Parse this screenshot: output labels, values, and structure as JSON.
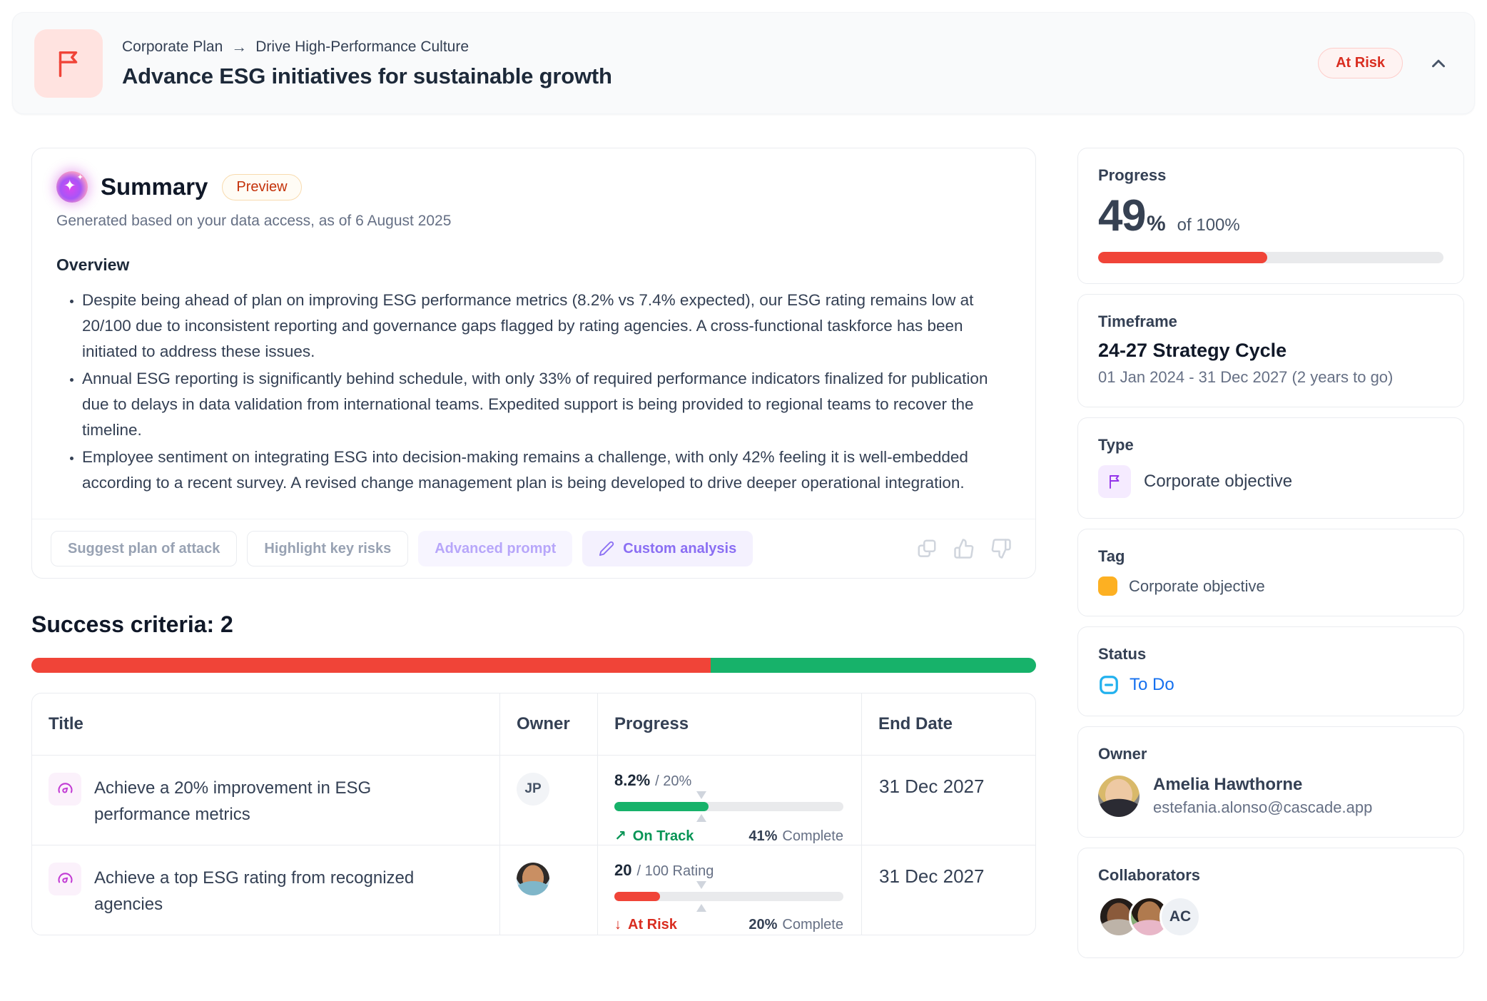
{
  "header": {
    "breadcrumb": {
      "parent": "Corporate Plan",
      "separator": "→",
      "child": "Drive High-Performance Culture"
    },
    "title": "Advance ESG initiatives for sustainable growth",
    "status_badge": "At Risk",
    "icon": "flag-icon"
  },
  "summary": {
    "title": "Summary",
    "badge": "Preview",
    "generated_note": "Generated based on your data access, as of 6 August 2025",
    "section_heading": "Overview",
    "bullets": [
      "Despite being ahead of plan on improving ESG performance metrics (8.2% vs 7.4% expected), our ESG rating remains low at 20/100 due to inconsistent reporting and governance gaps flagged by rating agencies. A cross-functional taskforce has been initiated to address these issues.",
      "Annual ESG reporting is significantly behind schedule, with only 33% of required performance indicators finalized for publication due to delays in data validation from international teams. Expedited support is being provided to regional teams to recover the timeline.",
      "Employee sentiment on integrating ESG into decision-making remains a challenge, with only 42% feeling it is well-embedded according to a recent survey. A revised change management plan is being developed to drive deeper operational integration."
    ],
    "actions": {
      "suggest": "Suggest plan of attack",
      "highlight": "Highlight key risks",
      "advanced": "Advanced prompt",
      "custom": "Custom analysis"
    },
    "feedback_icons": [
      "copy-icon",
      "thumbs-up-icon",
      "thumbs-down-icon"
    ]
  },
  "success_criteria": {
    "heading": "Success criteria: 2",
    "bar": {
      "segments": [
        {
          "color": "#F04438",
          "percent": 67.6
        },
        {
          "color": "#17B26A",
          "percent": 32.4
        }
      ]
    },
    "table": {
      "columns": [
        "Title",
        "Owner",
        "Progress",
        "End Date"
      ],
      "rows": [
        {
          "icon": "gauge-icon",
          "title": "Achieve a 20% improvement in ESG performance metrics",
          "owner_initials": "JP",
          "progress": {
            "current": "8.2%",
            "target": "/ 20%",
            "fill_percent": 41,
            "expected_marker_percent": 38,
            "fill_color": "#17B26A",
            "status_arrow": "↗",
            "status_label": "On Track",
            "complete_value": "41%",
            "complete_word": "Complete"
          },
          "end_date": "31 Dec 2027"
        },
        {
          "icon": "gauge-icon",
          "title": "Achieve a top ESG rating from recognized agencies",
          "owner_avatar": "photo-woman-teal",
          "progress": {
            "current": "20",
            "target": "/ 100 Rating",
            "fill_percent": 20,
            "expected_marker_percent": 38,
            "fill_color": "#F04438",
            "status_arrow": "↓",
            "status_label": "At Risk",
            "complete_value": "20%",
            "complete_word": "Complete"
          },
          "end_date": "31 Dec 2027"
        }
      ]
    }
  },
  "sidebar": {
    "progress": {
      "label": "Progress",
      "value": "49",
      "unit": "%",
      "of_total": "of 100%",
      "bar_percent": 49,
      "bar_color": "#F04438"
    },
    "timeframe": {
      "label": "Timeframe",
      "name": "24-27 Strategy Cycle",
      "range": "01 Jan 2024 - 31 Dec 2027 (2 years to go)"
    },
    "type": {
      "label": "Type",
      "value": "Corporate objective",
      "icon": "flag-icon"
    },
    "tag": {
      "label": "Tag",
      "value": "Corporate objective",
      "color": "#FDB022"
    },
    "status": {
      "label": "Status",
      "value": "To Do",
      "icon": "minus-square-icon",
      "icon_color": "#22B1EE",
      "text_color": "#1570EF"
    },
    "owner": {
      "label": "Owner",
      "name": "Amelia Hawthorne",
      "email": "estefania.alonso@cascade.app",
      "avatar": "photo-amelia"
    },
    "collaborators": {
      "label": "Collaborators",
      "avatars": [
        "photo-woman-curly",
        "photo-man-glasses"
      ],
      "initials": "AC"
    }
  }
}
